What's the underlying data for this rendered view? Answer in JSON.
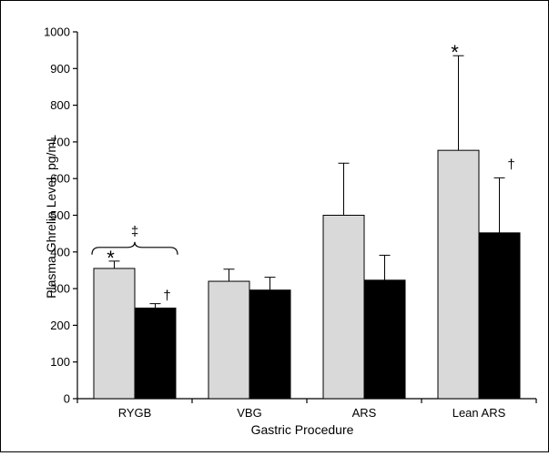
{
  "chart_data": {
    "type": "bar",
    "xlabel": "Gastric Procedure",
    "ylabel": "Plasma Ghrelin Level, pg/mL",
    "ylim": [
      0,
      1000
    ],
    "yticks": [
      "0",
      "100",
      "200",
      "300",
      "400",
      "500",
      "600",
      "700",
      "800",
      "900",
      "1000"
    ],
    "grid": false,
    "categories": [
      "RYGB",
      "VBG",
      "ARS",
      "Lean ARS"
    ],
    "series": [
      {
        "color": "#d9d9d9",
        "values": [
          355,
          320,
          500,
          677
        ],
        "error": [
          20,
          33,
          142,
          258
        ]
      },
      {
        "color": "#000000",
        "values": [
          247,
          296,
          323,
          452
        ],
        "error": [
          12,
          35,
          68,
          150
        ]
      }
    ],
    "annotations": {
      "asterisk": "*",
      "dagger": "†",
      "double_dagger": "‡"
    }
  }
}
